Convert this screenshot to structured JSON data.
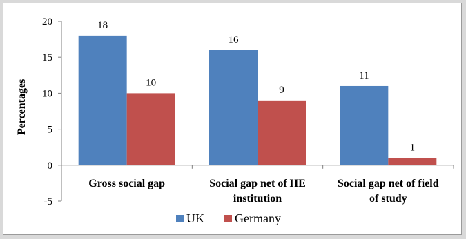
{
  "chart_data": {
    "type": "bar",
    "title": "",
    "xlabel": "",
    "ylabel": "Percentages",
    "ylim": [
      -5,
      20
    ],
    "yticks": [
      -5,
      0,
      5,
      10,
      15,
      20
    ],
    "categories": [
      [
        "Gross social gap"
      ],
      [
        "Social gap net of HE",
        "institution"
      ],
      [
        "Social gap net of field",
        "of study"
      ]
    ],
    "series": [
      {
        "name": "UK",
        "values": [
          18,
          16,
          11
        ],
        "color": "#4f81bd"
      },
      {
        "name": "Germany",
        "values": [
          10,
          9,
          1
        ],
        "color": "#c0504d"
      }
    ],
    "data_labels": true,
    "grid": false,
    "legend_position": "bottom"
  }
}
